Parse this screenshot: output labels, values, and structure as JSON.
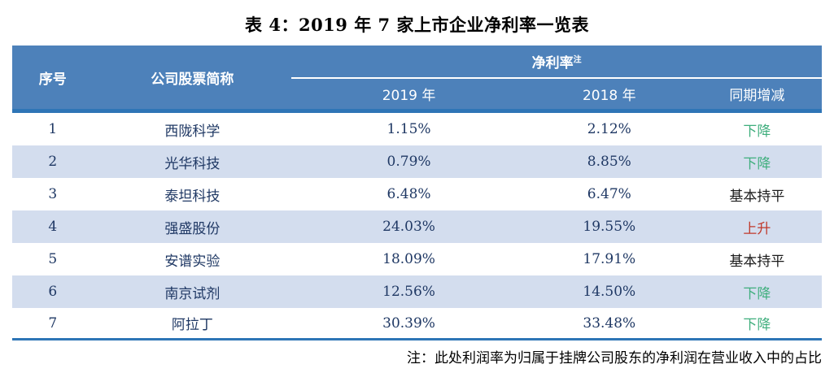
{
  "title": "表 4：2019 年 7 家上市企业净利率一览表",
  "table": {
    "header": {
      "col_serial": "序号",
      "col_company": "公司股票简称",
      "col_group": "净利率",
      "col_group_sup": "注",
      "col_2019": "2019 年",
      "col_2018": "2018 年",
      "col_change": "同期增减"
    },
    "rows": [
      {
        "serial": "1",
        "company": "西陇科学",
        "y2019": "1.15%",
        "y2018": "2.12%",
        "change": "下降",
        "trend": "down"
      },
      {
        "serial": "2",
        "company": "光华科技",
        "y2019": "0.79%",
        "y2018": "8.85%",
        "change": "下降",
        "trend": "down"
      },
      {
        "serial": "3",
        "company": "泰坦科技",
        "y2019": "6.48%",
        "y2018": "6.47%",
        "change": "基本持平",
        "trend": "flat"
      },
      {
        "serial": "4",
        "company": "强盛股份",
        "y2019": "24.03%",
        "y2018": "19.55%",
        "change": "上升",
        "trend": "up"
      },
      {
        "serial": "5",
        "company": "安谱实验",
        "y2019": "18.09%",
        "y2018": "17.91%",
        "change": "基本持平",
        "trend": "flat"
      },
      {
        "serial": "6",
        "company": "南京试剂",
        "y2019": "12.56%",
        "y2018": "14.50%",
        "change": "下降",
        "trend": "down"
      },
      {
        "serial": "7",
        "company": "阿拉丁",
        "y2019": "30.39%",
        "y2018": "33.48%",
        "change": "下降",
        "trend": "down"
      }
    ]
  },
  "footnote": "注：此处利润率为归属于挂牌公司股东的净利润在营业收入中的占比",
  "colors": {
    "header_bg": "#4d81ba",
    "divider_blue": "#2e75b6",
    "row_alt_bg": "#d3ddee",
    "value_text": "#1f3864",
    "trend_down": "#3fae7d",
    "trend_up": "#c0392b",
    "trend_flat": "#1a1a1a"
  }
}
